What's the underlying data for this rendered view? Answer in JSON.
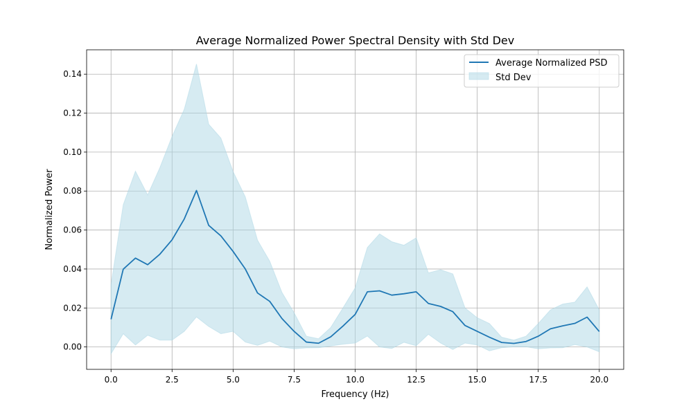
{
  "chart_data": {
    "type": "line",
    "title": "Average Normalized Power Spectral Density with Std Dev",
    "xlabel": "Frequency (Hz)",
    "ylabel": "Normalized Power",
    "xlim": [
      -1,
      21
    ],
    "ylim": [
      -0.0115,
      0.1525
    ],
    "xticks": [
      0.0,
      2.5,
      5.0,
      7.5,
      10.0,
      12.5,
      15.0,
      17.5,
      20.0
    ],
    "xtick_labels": [
      "0.0",
      "2.5",
      "5.0",
      "7.5",
      "10.0",
      "12.5",
      "15.0",
      "17.5",
      "20.0"
    ],
    "yticks": [
      0.0,
      0.02,
      0.04,
      0.06,
      0.08,
      0.1,
      0.12,
      0.14
    ],
    "ytick_labels": [
      "0.00",
      "0.02",
      "0.04",
      "0.06",
      "0.08",
      "0.10",
      "0.12",
      "0.14"
    ],
    "grid": true,
    "legend_position": "top-right",
    "x": [
      0,
      0.5,
      1,
      1.5,
      2,
      2.5,
      3,
      3.5,
      4,
      4.5,
      5,
      5.5,
      6,
      6.5,
      7,
      7.5,
      8,
      8.5,
      9,
      9.5,
      10,
      10.5,
      11,
      11.5,
      12,
      12.5,
      13,
      13.5,
      14,
      14.5,
      15,
      15.5,
      16,
      16.5,
      17,
      17.5,
      18,
      18.5,
      19,
      19.5,
      20
    ],
    "series": [
      {
        "name": "Average Normalized PSD",
        "kind": "line",
        "color": "#1f77b4",
        "values": [
          0.0142,
          0.0399,
          0.0456,
          0.0422,
          0.0476,
          0.055,
          0.0657,
          0.0803,
          0.0624,
          0.057,
          0.049,
          0.04,
          0.0277,
          0.0234,
          0.0146,
          0.008,
          0.0025,
          0.0019,
          0.0052,
          0.0107,
          0.0167,
          0.0283,
          0.0288,
          0.0266,
          0.0273,
          0.0283,
          0.0223,
          0.0208,
          0.0181,
          0.011,
          0.008,
          0.005,
          0.0023,
          0.0018,
          0.0028,
          0.0055,
          0.0093,
          0.0108,
          0.0121,
          0.0153,
          0.0079
        ]
      },
      {
        "name": "Std Dev",
        "kind": "band",
        "color": "#add8e6",
        "alpha": 0.5,
        "upper": [
          0.032,
          0.073,
          0.0902,
          0.078,
          0.092,
          0.108,
          0.122,
          0.1452,
          0.1143,
          0.1072,
          0.09,
          0.077,
          0.0548,
          0.044,
          0.028,
          0.0175,
          0.0055,
          0.0042,
          0.01,
          0.02,
          0.0303,
          0.051,
          0.058,
          0.054,
          0.0522,
          0.056,
          0.038,
          0.0396,
          0.0375,
          0.02,
          0.015,
          0.012,
          0.005,
          0.0035,
          0.0055,
          0.012,
          0.019,
          0.022,
          0.023,
          0.0308,
          0.019
        ],
        "lower": [
          -0.0035,
          0.0068,
          0.001,
          0.006,
          0.0035,
          0.0035,
          0.008,
          0.0154,
          0.0105,
          0.0068,
          0.008,
          0.0025,
          0.0008,
          0.003,
          0.0,
          -0.001,
          -0.0005,
          -0.0004,
          0.0005,
          0.0014,
          0.002,
          0.0056,
          0.0,
          -0.0008,
          0.0024,
          0.0006,
          0.0065,
          0.002,
          -0.0013,
          0.002,
          0.001,
          -0.002,
          -0.0004,
          0.0001,
          0.0001,
          -0.001,
          -0.0005,
          -0.0004,
          0.0012,
          0.0,
          -0.0025
        ]
      }
    ]
  }
}
